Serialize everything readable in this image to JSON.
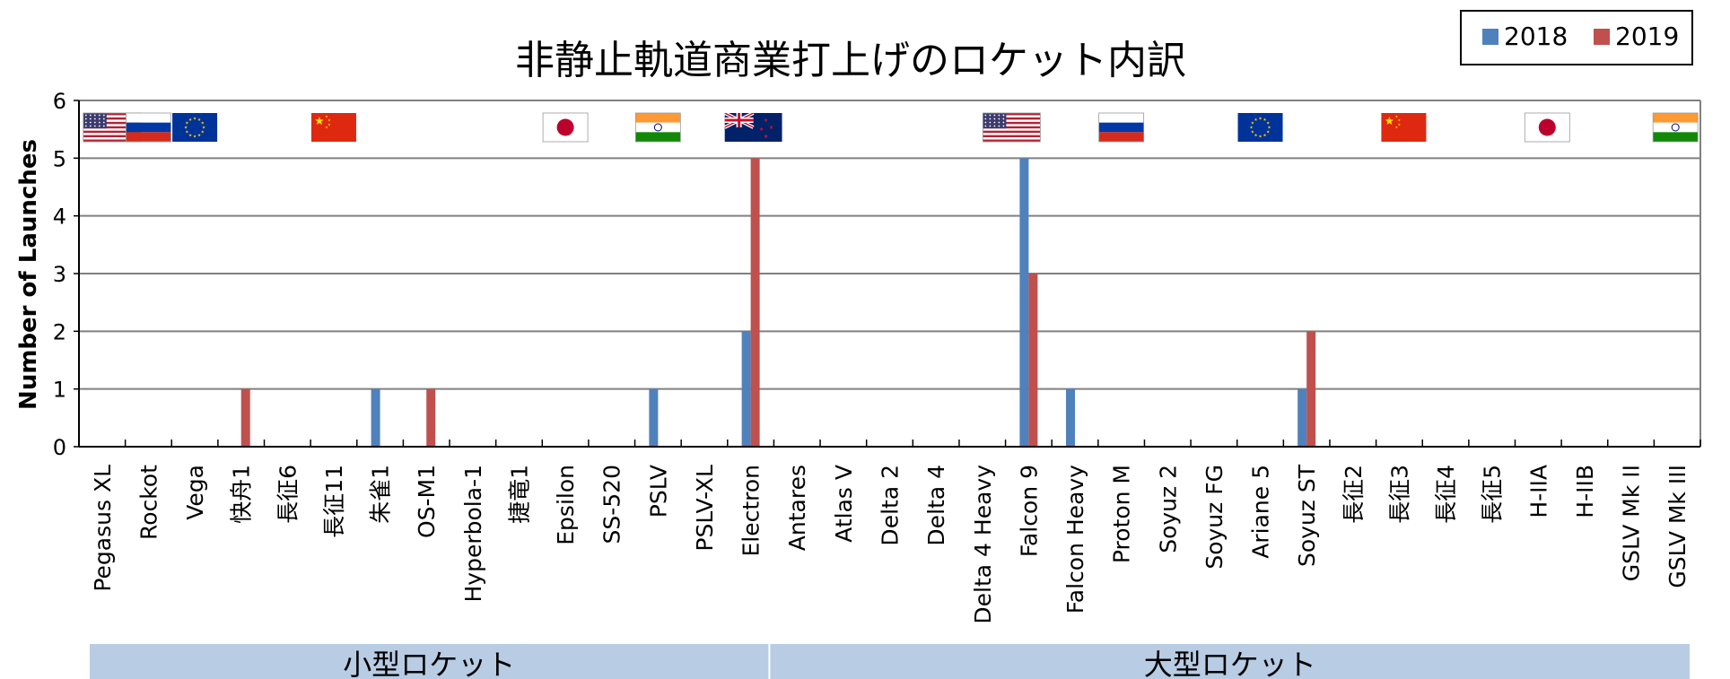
{
  "chart_data": {
    "type": "bar",
    "title": "非静止軌道商業打上げのロケット内訳",
    "ylabel": "Number of Launches",
    "xlabel": "",
    "ylim": [
      0,
      6
    ],
    "yticks": [
      0,
      1,
      2,
      3,
      4,
      5,
      6
    ],
    "grid": true,
    "legend_position": "top-right",
    "categories": [
      "Pegasus XL",
      "Rockot",
      "Vega",
      "快舟1",
      "長征6",
      "長征11",
      "朱雀1",
      "OS-M1",
      "Hyperbola-1",
      "捷竜1",
      "Epsilon",
      "SS-520",
      "PSLV",
      "PSLV-XL",
      "Electron",
      "Antares",
      "Atlas V",
      "Delta 2",
      "Delta 4",
      "Delta 4 Heavy",
      "Falcon 9",
      "Falcon Heavy",
      "Proton M",
      "Soyuz 2",
      "Soyuz FG",
      "Ariane 5",
      "Soyuz ST",
      "長征2",
      "長征3",
      "長征4",
      "長征5",
      "H-IIA",
      "H-IIB",
      "GSLV Mk II",
      "GSLV Mk III"
    ],
    "series": [
      {
        "name": "2018",
        "color": "#4f81bd",
        "values": [
          0,
          0,
          0,
          0,
          0,
          0,
          1,
          0,
          0,
          0,
          0,
          0,
          1,
          0,
          2,
          0,
          0,
          0,
          0,
          0,
          5,
          1,
          0,
          0,
          0,
          0,
          1,
          0,
          0,
          0,
          0,
          0,
          0,
          0,
          0
        ]
      },
      {
        "name": "2019",
        "color": "#c0504d",
        "values": [
          0,
          0,
          0,
          1,
          0,
          0,
          0,
          1,
          0,
          0,
          0,
          0,
          0,
          0,
          5,
          0,
          0,
          0,
          0,
          0,
          3,
          0,
          0,
          0,
          0,
          0,
          2,
          0,
          0,
          0,
          0,
          0,
          0,
          0,
          0
        ]
      }
    ],
    "flags": [
      "usa-flag-icon",
      "russia-flag-icon",
      "eu-flag-icon",
      "china-flag-icon",
      "japan-flag-icon",
      "india-flag-icon",
      "new-zealand-flag-icon",
      "usa-flag-icon",
      "russia-flag-icon",
      "eu-flag-icon",
      "china-flag-icon",
      "japan-flag-icon",
      "india-flag-icon"
    ],
    "groups": [
      {
        "label": "小型ロケット",
        "from": "Pegasus XL",
        "to": "Electron"
      },
      {
        "label": "大型ロケット",
        "from": "Antares",
        "to": "GSLV Mk III"
      }
    ],
    "group_band_color": "#b8cce4"
  }
}
